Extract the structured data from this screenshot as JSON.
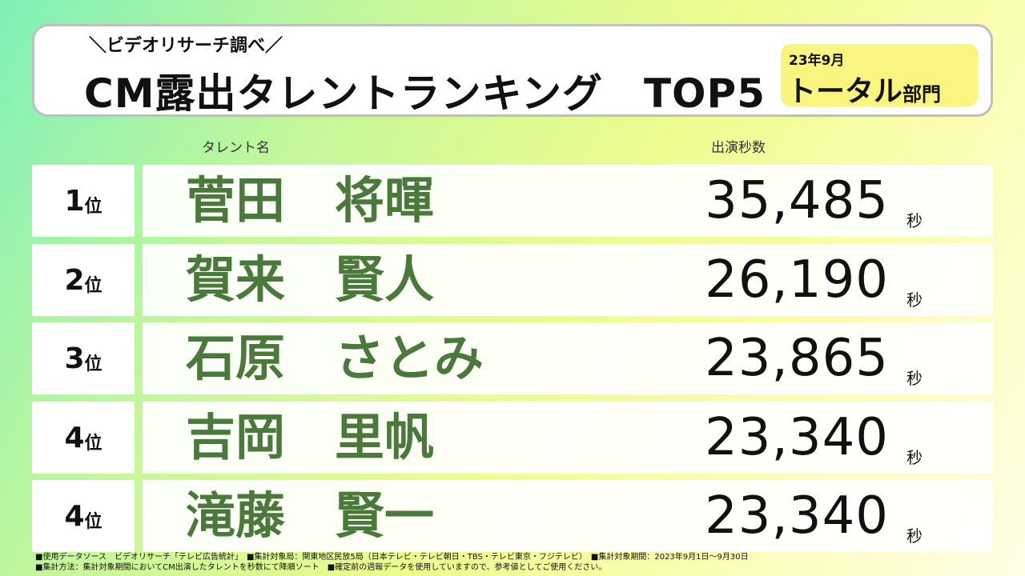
{
  "header": {
    "source_line": "＼ビデオリサーチ調べ／",
    "title": "CM露出タレントランキング　TOP5",
    "badge_date": "23年9月",
    "badge_category_main": "トータル",
    "badge_category_suffix": "部門"
  },
  "columns": {
    "name": "タレント名",
    "seconds": "出演秒数"
  },
  "rank_unit": "位",
  "seconds_unit": "秒",
  "rankings": [
    {
      "rank": "1",
      "name": "菅田　将暉",
      "seconds": "35,485"
    },
    {
      "rank": "2",
      "name": "賀来　賢人",
      "seconds": "26,190"
    },
    {
      "rank": "3",
      "name": "石原　さとみ",
      "seconds": "23,865"
    },
    {
      "rank": "4",
      "name": "吉岡　里帆",
      "seconds": "23,340"
    },
    {
      "rank": "4",
      "name": "滝藤　賢一",
      "seconds": "23,340"
    }
  ],
  "footnotes": {
    "line1": "■使用データソース　ビデオリサーチ「テレビ広告統計」　■集計対象局：関東地区民放5局（日本テレビ・テレビ朝日・TBS・テレビ東京・フジテレビ）　■集計対象期間：2023年9月1日～9月30日",
    "line2": "■集計方法：集計対象期間においてCM出演したタレントを秒数にて降順ソート　■確定前の週報データを使用していますので、参考値としてご使用ください。"
  },
  "colors": {
    "name_green": "#4a7a3a",
    "badge_yellow": "#f9f57e"
  }
}
